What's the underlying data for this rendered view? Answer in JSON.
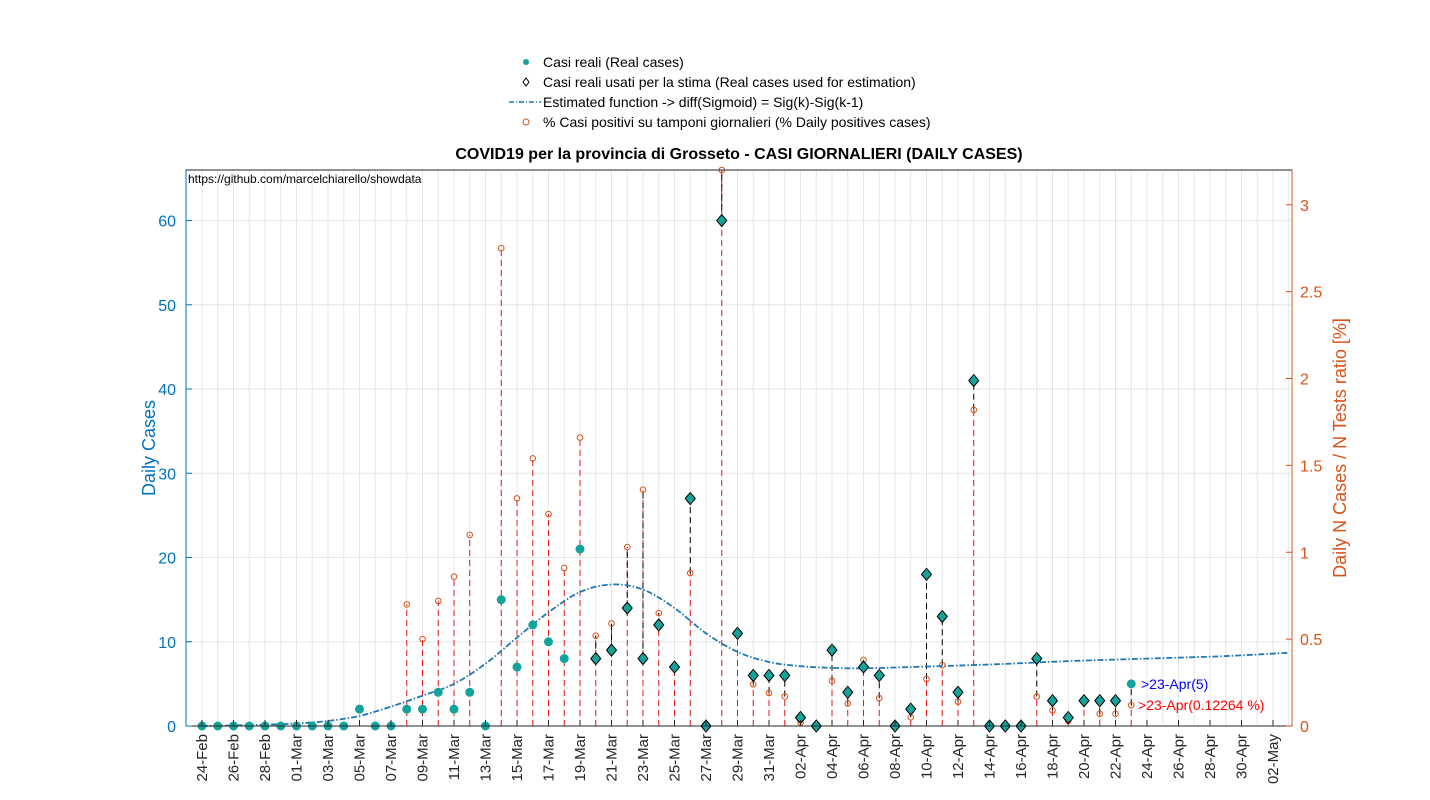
{
  "chart_data": {
    "type": "scatter",
    "title": "COVID19 per la provincia di Grosseto - CASI GIORNALIERI (DAILY CASES)",
    "source_note": "https://github.com/marcelchiarello/showdata",
    "ylabel_left": "Daily Cases",
    "ylabel_right": "Daily N Cases / N Tests ratio [%]",
    "ylim_left": [
      0,
      66
    ],
    "ylim_right": [
      0,
      3.2
    ],
    "yticks_left": [
      "0",
      "10",
      "20",
      "30",
      "40",
      "50",
      "60"
    ],
    "yticks_right": [
      "0",
      "0.5",
      "1",
      "1.5",
      "2",
      "2.5",
      "3"
    ],
    "grid": true,
    "legend_position": "top-center",
    "legend": [
      "Casi reali (Real cases)",
      "Casi reali usati per la stima (Real cases used for estimation)",
      "Estimated function -> diff(Sigmoid) = Sig(k)-Sig(k-1)",
      "% Casi positivi su tamponi giornalieri (% Daily positives cases)"
    ],
    "x_start": "2020-02-24",
    "x_tick_labels": [
      "24-Feb",
      "26-Feb",
      "28-Feb",
      "01-Mar",
      "03-Mar",
      "05-Mar",
      "07-Mar",
      "09-Mar",
      "11-Mar",
      "13-Mar",
      "15-Mar",
      "17-Mar",
      "19-Mar",
      "21-Mar",
      "23-Mar",
      "25-Mar",
      "27-Mar",
      "29-Mar",
      "31-Mar",
      "02-Apr",
      "04-Apr",
      "06-Apr",
      "08-Apr",
      "10-Apr",
      "12-Apr",
      "14-Apr",
      "16-Apr",
      "18-Apr",
      "20-Apr",
      "22-Apr",
      "24-Apr",
      "26-Apr",
      "28-Apr",
      "30-Apr",
      "02-May"
    ],
    "real_cases": [
      0,
      0,
      0,
      0,
      0,
      0,
      0,
      0,
      0,
      0,
      2,
      0,
      0,
      2,
      2,
      4,
      2,
      4,
      0,
      15,
      7,
      12,
      10,
      8,
      21,
      8,
      9,
      14,
      8,
      12,
      7,
      27,
      0,
      60,
      11,
      6,
      6,
      6,
      1,
      0,
      9,
      4,
      7,
      6,
      0,
      2,
      18,
      13,
      4,
      41,
      0,
      0,
      0,
      8,
      3,
      1,
      3,
      3,
      3,
      5
    ],
    "used_for_estimation_from_index": 25,
    "positive_ratio_percent": [
      0,
      0,
      0,
      0,
      0,
      0,
      0,
      0,
      0,
      0,
      0,
      0,
      0,
      0.7,
      0.5,
      0.72,
      0.86,
      1.1,
      0,
      2.75,
      1.31,
      1.54,
      1.22,
      0.91,
      1.66,
      0.52,
      0.59,
      1.03,
      1.36,
      0.65,
      0.33,
      0.88,
      0,
      3.2,
      0.54,
      0.24,
      0.19,
      0.17,
      0.02,
      0,
      0.26,
      0.13,
      0.38,
      0.16,
      0,
      0.05,
      0.27,
      0.35,
      0.14,
      1.82,
      0,
      0,
      0,
      0.17,
      0.09,
      0.03,
      0.15,
      0.07,
      0.07,
      0.12
    ],
    "estimated_function": {
      "name": "Estimated function -> diff(Sigmoid) = Sig(k)-Sig(k-1)",
      "x_range": [
        "24-Feb",
        "02-May"
      ],
      "points": [
        [
          0,
          0.0
        ],
        [
          3,
          0.1
        ],
        [
          6,
          0.3
        ],
        [
          8,
          0.6
        ],
        [
          10,
          1.2
        ],
        [
          12,
          2.3
        ],
        [
          14,
          3.6
        ],
        [
          16,
          5.0
        ],
        [
          18,
          7.4
        ],
        [
          20,
          10.5
        ],
        [
          22,
          13.5
        ],
        [
          24,
          15.9
        ],
        [
          26,
          16.8
        ],
        [
          28,
          16.2
        ],
        [
          30,
          14.0
        ],
        [
          32,
          11.0
        ],
        [
          34,
          8.8
        ],
        [
          36,
          7.6
        ],
        [
          38,
          7.1
        ],
        [
          40,
          6.9
        ],
        [
          42,
          6.85
        ],
        [
          45,
          7.0
        ],
        [
          50,
          7.3
        ],
        [
          55,
          7.7
        ],
        [
          60,
          8.0
        ],
        [
          65,
          8.3
        ],
        [
          69,
          8.7
        ]
      ]
    },
    "annotations": [
      {
        "text": ">23-Apr(5)",
        "color": "#0000FF"
      },
      {
        "text": ">23-Apr(0.12264 %)",
        "color": "#FF0000"
      }
    ]
  },
  "colors": {
    "real_cases": "#14A39A",
    "estimated": "#1F77B4",
    "ratio": "#D95319",
    "ratio_stem": "#E41A1C",
    "left_axis": "#0072BD",
    "right_axis": "#D95319"
  }
}
